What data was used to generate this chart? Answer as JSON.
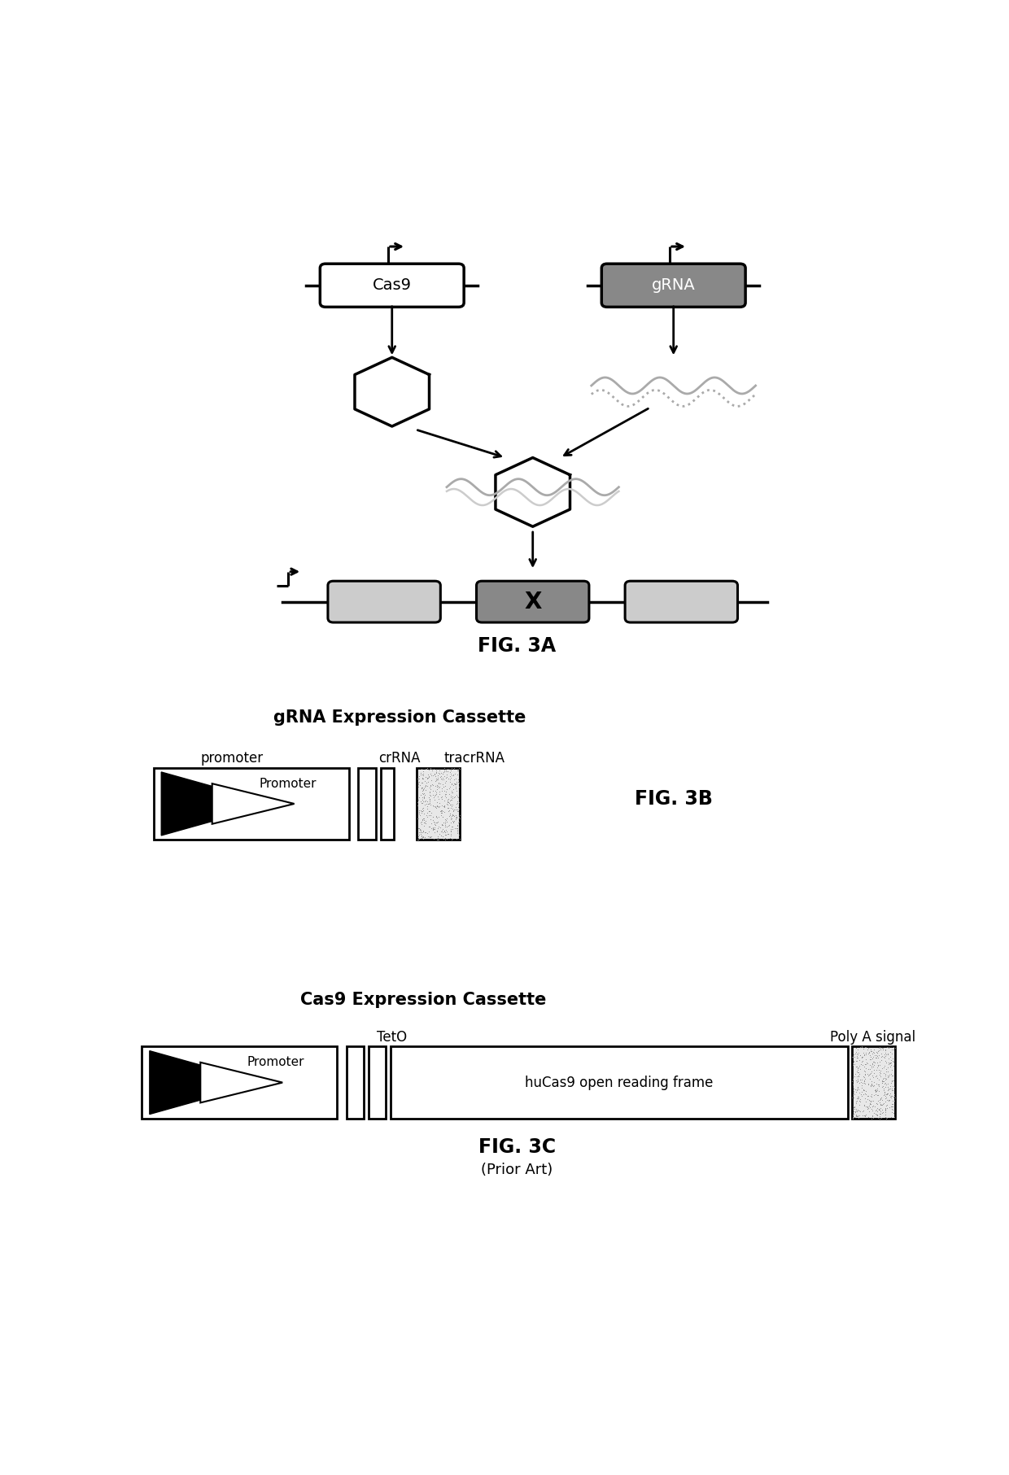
{
  "fig_width": 12.4,
  "fig_height": 18.13,
  "bg_color": "#ffffff",
  "panel_3A": {
    "title": "FIG. 3A",
    "cas9_label": "Cas9",
    "grna_label": "gRNA"
  },
  "panel_3B": {
    "title": "FIG. 3B",
    "heading": "gRNA Expression Cassette",
    "promoter_label": "promoter",
    "crRNA_label": "crRNA",
    "tracrRNA_label": "tracrRNA",
    "promoter_text": "Promoter"
  },
  "panel_3C": {
    "title": "FIG. 3C",
    "subtitle": "(Prior Art)",
    "heading": "Cas9 Expression Cassette",
    "teto_label": "TetO",
    "polyA_label": "Poly A signal",
    "orf_label": "huCas9 open reading frame",
    "promoter_text": "Promoter"
  }
}
